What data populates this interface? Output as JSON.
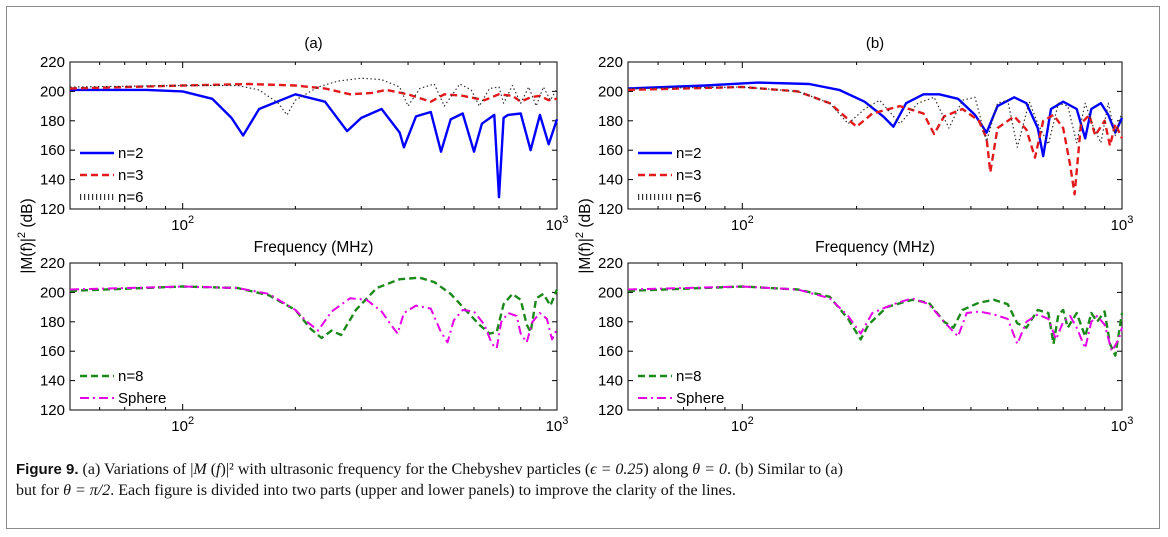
{
  "chart_data": [
    {
      "type": "line",
      "title": "(a)",
      "xlabel": "Frequency (MHz)",
      "ylabel": "|M(f)|² (dB)",
      "xscale": "log",
      "xlim": [
        50,
        1000
      ],
      "ylim": [
        120,
        220
      ],
      "xticks": [
        "10²",
        "10³"
      ],
      "yticks": [
        120,
        140,
        160,
        180,
        200,
        220
      ],
      "legend_position": "lower-left",
      "series": [
        {
          "name": "n=2",
          "color": "#0000ff",
          "style": "solid",
          "x": [
            50,
            80,
            100,
            120,
            135,
            145,
            160,
            200,
            240,
            275,
            300,
            340,
            380,
            390,
            420,
            460,
            490,
            520,
            560,
            600,
            630,
            680,
            700,
            720,
            740,
            800,
            850,
            900,
            950,
            1000
          ],
          "y": [
            201,
            201,
            200,
            195,
            182,
            170,
            188,
            198,
            193,
            173,
            182,
            188,
            172,
            162,
            183,
            186,
            159,
            181,
            185,
            159,
            178,
            184,
            128,
            182,
            184,
            185,
            160,
            184,
            164,
            181
          ]
        },
        {
          "name": "n=3",
          "color": "#e31a1c",
          "style": "dashed",
          "x": [
            50,
            100,
            150,
            200,
            240,
            280,
            320,
            350,
            400,
            460,
            500,
            560,
            640,
            700,
            760,
            800,
            850,
            900,
            950,
            1000
          ],
          "y": [
            202,
            204,
            205,
            204,
            202,
            198,
            199,
            201,
            198,
            193,
            198,
            197,
            194,
            198,
            197,
            193,
            196,
            197,
            194,
            195
          ]
        },
        {
          "name": "n=6",
          "color": "#333333",
          "style": "dotted",
          "x": [
            50,
            100,
            140,
            160,
            180,
            190,
            200,
            230,
            260,
            300,
            340,
            380,
            400,
            430,
            470,
            500,
            550,
            590,
            620,
            660,
            700,
            720,
            760,
            800,
            840,
            880,
            920,
            960,
            1000
          ],
          "y": [
            203,
            204,
            204,
            201,
            192,
            184,
            194,
            203,
            207,
            209,
            208,
            203,
            190,
            202,
            205,
            190,
            205,
            201,
            190,
            202,
            203,
            192,
            204,
            192,
            203,
            190,
            203,
            194,
            202
          ]
        }
      ]
    },
    {
      "type": "line",
      "title": "(b)",
      "xlabel": "Frequency (MHz)",
      "ylabel": "|M(f)|² (dB)",
      "xscale": "log",
      "xlim": [
        50,
        1000
      ],
      "ylim": [
        120,
        220
      ],
      "xticks": [
        "10²",
        "10³"
      ],
      "yticks": [
        120,
        140,
        160,
        180,
        200,
        220
      ],
      "legend_position": "lower-left",
      "series": [
        {
          "name": "n=2",
          "color": "#0000ff",
          "style": "solid",
          "x": [
            50,
            80,
            110,
            150,
            180,
            210,
            235,
            250,
            270,
            300,
            330,
            370,
            410,
            440,
            470,
            520,
            560,
            600,
            620,
            650,
            700,
            760,
            800,
            830,
            880,
            920,
            960,
            1000
          ],
          "y": [
            202,
            204,
            206,
            205,
            201,
            193,
            183,
            176,
            192,
            198,
            198,
            195,
            184,
            172,
            190,
            196,
            192,
            175,
            156,
            188,
            193,
            188,
            168,
            188,
            192,
            184,
            172,
            182
          ]
        },
        {
          "name": "n=3",
          "color": "#e31a1c",
          "style": "dashed",
          "x": [
            50,
            100,
            140,
            170,
            190,
            200,
            220,
            260,
            300,
            320,
            340,
            380,
            420,
            440,
            450,
            470,
            520,
            560,
            590,
            620,
            660,
            700,
            730,
            750,
            780,
            820,
            850,
            900,
            930,
            960,
            1000
          ],
          "y": [
            201,
            203,
            200,
            192,
            181,
            176,
            185,
            190,
            185,
            171,
            183,
            188,
            180,
            168,
            145,
            175,
            183,
            174,
            155,
            180,
            184,
            175,
            150,
            130,
            178,
            184,
            170,
            180,
            163,
            178,
            168
          ]
        },
        {
          "name": "n=6",
          "color": "#333333",
          "style": "dotted",
          "x": [
            50,
            100,
            140,
            170,
            190,
            210,
            230,
            260,
            290,
            320,
            350,
            380,
            410,
            440,
            470,
            500,
            530,
            570,
            600,
            640,
            680,
            720,
            760,
            800,
            840,
            880,
            920,
            960,
            1000
          ],
          "y": [
            202,
            203,
            200,
            192,
            178,
            188,
            194,
            178,
            192,
            196,
            175,
            194,
            196,
            166,
            192,
            194,
            162,
            193,
            178,
            164,
            192,
            190,
            165,
            192,
            176,
            165,
            192,
            170,
            186
          ]
        }
      ]
    },
    {
      "type": "line",
      "xlabel": "",
      "ylabel": "",
      "xscale": "log",
      "xlim": [
        50,
        1000
      ],
      "ylim": [
        120,
        220
      ],
      "xticks": [
        "10²",
        "10³"
      ],
      "yticks": [
        120,
        140,
        160,
        180,
        200,
        220
      ],
      "legend_position": "lower-left",
      "series": [
        {
          "name": "n=8",
          "color": "#1b8a1b",
          "style": "dashed",
          "x": [
            50,
            100,
            140,
            170,
            200,
            220,
            235,
            250,
            265,
            290,
            330,
            380,
            430,
            470,
            520,
            570,
            620,
            660,
            690,
            720,
            760,
            800,
            830,
            850,
            880,
            920,
            960,
            1000
          ],
          "y": [
            201,
            204,
            203,
            198,
            188,
            175,
            169,
            174,
            171,
            188,
            203,
            209,
            210,
            207,
            199,
            188,
            178,
            172,
            173,
            192,
            199,
            195,
            178,
            173,
            196,
            199,
            191,
            202
          ]
        },
        {
          "name": "Sphere",
          "color": "#e600e6",
          "style": "dashdot",
          "x": [
            50,
            100,
            140,
            170,
            200,
            215,
            230,
            250,
            280,
            310,
            340,
            360,
            375,
            390,
            420,
            460,
            490,
            510,
            530,
            560,
            600,
            640,
            670,
            690,
            710,
            740,
            780,
            800,
            830,
            860,
            900,
            940,
            970,
            1000
          ],
          "y": [
            202,
            204,
            203,
            199,
            188,
            180,
            174,
            187,
            196,
            195,
            187,
            178,
            172,
            186,
            191,
            189,
            173,
            166,
            181,
            188,
            187,
            178,
            165,
            162,
            180,
            186,
            184,
            172,
            166,
            180,
            186,
            182,
            168,
            175
          ]
        }
      ]
    },
    {
      "type": "line",
      "xlabel": "",
      "ylabel": "",
      "xscale": "log",
      "xlim": [
        50,
        1000
      ],
      "ylim": [
        120,
        220
      ],
      "xticks": [
        "10²",
        "10³"
      ],
      "yticks": [
        120,
        140,
        160,
        180,
        200,
        220
      ],
      "legend_position": "lower-left",
      "series": [
        {
          "name": "n=8",
          "color": "#1b8a1b",
          "style": "dashed",
          "x": [
            50,
            100,
            140,
            170,
            190,
            205,
            215,
            240,
            280,
            310,
            340,
            360,
            380,
            420,
            460,
            500,
            530,
            560,
            600,
            640,
            660,
            680,
            700,
            720,
            760,
            800,
            830,
            860,
            900,
            930,
            960,
            1000
          ],
          "y": [
            201,
            204,
            202,
            197,
            182,
            168,
            178,
            190,
            195,
            193,
            180,
            176,
            188,
            193,
            195,
            192,
            179,
            176,
            188,
            186,
            165,
            185,
            188,
            176,
            186,
            170,
            186,
            180,
            187,
            165,
            157,
            186
          ]
        },
        {
          "name": "Sphere",
          "color": "#e600e6",
          "style": "dashdot",
          "x": [
            50,
            100,
            140,
            170,
            190,
            205,
            220,
            250,
            280,
            310,
            340,
            370,
            390,
            420,
            460,
            500,
            530,
            560,
            600,
            640,
            670,
            700,
            730,
            760,
            800,
            830,
            860,
            900,
            940,
            980,
            1000
          ],
          "y": [
            202,
            204,
            202,
            196,
            184,
            172,
            186,
            192,
            196,
            192,
            180,
            170,
            186,
            187,
            185,
            182,
            165,
            180,
            185,
            182,
            168,
            180,
            184,
            176,
            162,
            180,
            184,
            178,
            160,
            168,
            176
          ]
        }
      ]
    }
  ],
  "caption": {
    "label": "Figure 9.",
    "text_a1": "(a) Variations of |",
    "M": "M",
    "f": "f",
    "text_a2": "|² with ultrasonic frequency for the Chebyshev particles (",
    "eps": "ϵ = 0.25",
    "text_a3": ") along ",
    "theta0": "θ = 0",
    "text_a4": ". (b) Similar to (a)",
    "text_b1": "but for ",
    "theta_pi2": "θ = π/2",
    "text_b2": ". Each figure is divided into two parts (upper and lower panels) to improve the clarity of the lines."
  }
}
